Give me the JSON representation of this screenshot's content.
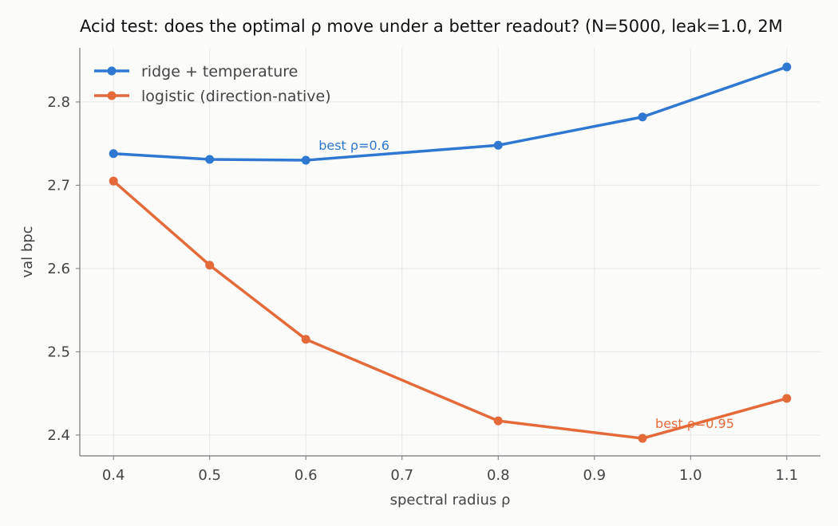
{
  "chart_data": {
    "type": "line",
    "title": "Acid test: does the optimal ρ move under a better readout? (N=5000, leak=1.0, 2M",
    "xlabel": "spectral radius ρ",
    "ylabel": "val bpc",
    "xlim": [
      0.365,
      1.135
    ],
    "ylim": [
      2.375,
      2.865
    ],
    "xticks": [
      0.4,
      0.5,
      0.6,
      0.7,
      0.8,
      0.9,
      1.0,
      1.1
    ],
    "xtick_labels": [
      "0.4",
      "0.5",
      "0.6",
      "0.7",
      "0.8",
      "0.9",
      "1.0",
      "1.1"
    ],
    "yticks": [
      2.4,
      2.5,
      2.6,
      2.7,
      2.8
    ],
    "ytick_labels": [
      "2.4",
      "2.5",
      "2.6",
      "2.7",
      "2.8"
    ],
    "grid": true,
    "legend_position": "top-left",
    "series": [
      {
        "name": "ridge + temperature",
        "color": "#2f78d2",
        "x": [
          0.4,
          0.5,
          0.6,
          0.8,
          0.95,
          1.1
        ],
        "y": [
          2.738,
          2.731,
          2.73,
          2.748,
          2.782,
          2.842
        ]
      },
      {
        "name": "logistic (direction-native)",
        "color": "#e56a39",
        "x": [
          0.4,
          0.5,
          0.6,
          0.8,
          0.95,
          1.1
        ],
        "y": [
          2.705,
          2.604,
          2.515,
          2.417,
          2.396,
          2.444
        ]
      }
    ],
    "annotations": [
      {
        "text": "best ρ=0.6",
        "series": 0,
        "x": 0.6,
        "y": 2.73
      },
      {
        "text": "best ρ=0.95",
        "series": 1,
        "x": 0.95,
        "y": 2.396
      }
    ]
  }
}
